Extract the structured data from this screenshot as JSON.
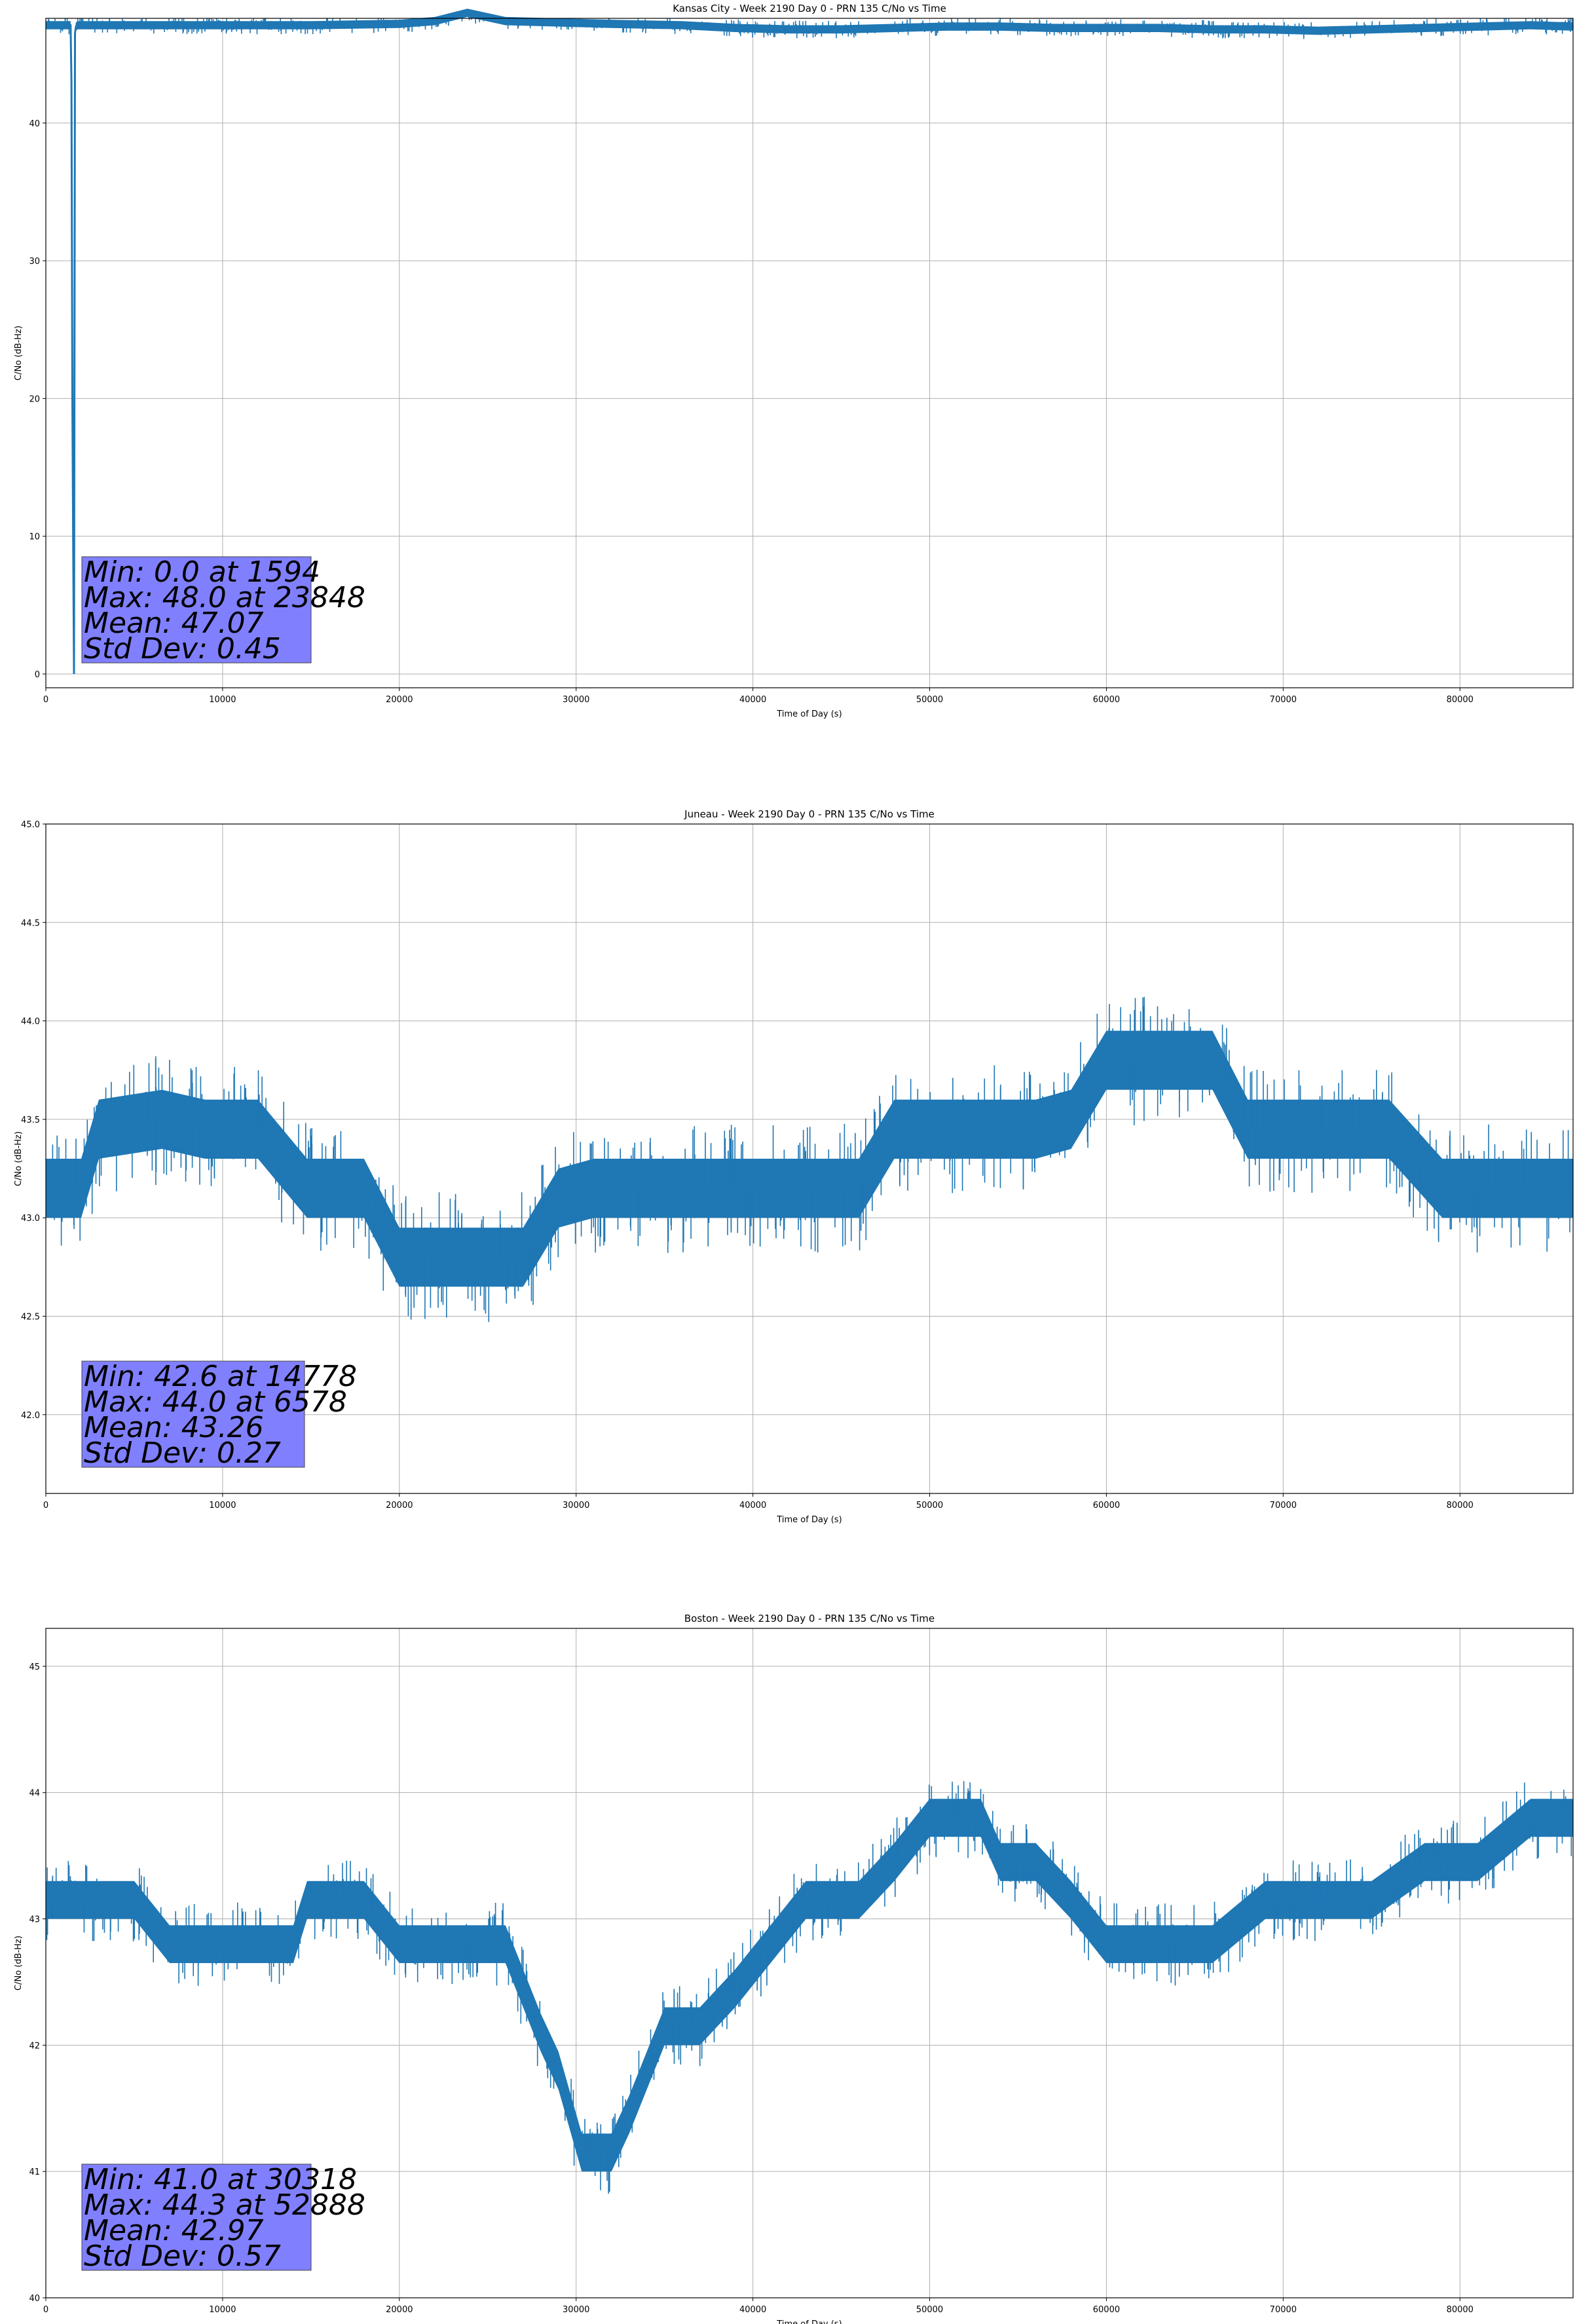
{
  "chart_data": [
    {
      "type": "line",
      "title": "Kansas City - Week 2190 Day 0 - PRN 135 C/No vs Time",
      "xlabel": "Time of Day (s)",
      "ylabel": "C/No (dB-Hz)",
      "xlim": [
        0,
        86400
      ],
      "ylim": [
        -1,
        47.6
      ],
      "xticks": [
        0,
        10000,
        20000,
        30000,
        40000,
        50000,
        60000,
        70000,
        80000
      ],
      "yticks": [
        0,
        10,
        20,
        30,
        40
      ],
      "grid": true,
      "line_color": "#1f77b4",
      "stats_box_color": "#8080ff",
      "stats": [
        "Min: 0.0 at 1594",
        "Max: 48.0 at 23848",
        "Mean: 47.07",
        "Std Dev: 0.45"
      ],
      "series": [
        {
          "x": [
            0,
            1400,
            1450,
            1500,
            1550,
            1594,
            1650,
            1700,
            1800,
            3000,
            6000,
            10000,
            15000,
            20000,
            22000,
            23848,
            26000,
            29000,
            32000,
            36000,
            39000,
            42000,
            45000,
            48000,
            51000,
            54000,
            57000,
            60000,
            63000,
            66000,
            69000,
            72000,
            75000,
            78000,
            81000,
            84000,
            86400
          ],
          "y": [
            47.1,
            47.1,
            43.0,
            20.0,
            9.0,
            0.0,
            46.5,
            47.0,
            47.1,
            47.1,
            47.1,
            47.1,
            47.1,
            47.2,
            47.4,
            48.0,
            47.4,
            47.3,
            47.2,
            47.1,
            46.9,
            46.8,
            46.8,
            46.9,
            47.0,
            47.0,
            46.9,
            46.9,
            46.9,
            46.8,
            46.8,
            46.7,
            46.8,
            46.9,
            47.0,
            47.1,
            47.0
          ],
          "band": 0.6
        }
      ]
    },
    {
      "type": "line",
      "title": "Juneau - Week 2190 Day 0 - PRN 135 C/No vs Time",
      "xlabel": "Time of Day (s)",
      "ylabel": "C/No (dB-Hz)",
      "xlim": [
        0,
        86400
      ],
      "ylim": [
        41.6,
        45.0
      ],
      "xticks": [
        0,
        10000,
        20000,
        30000,
        40000,
        50000,
        60000,
        70000,
        80000
      ],
      "yticks": [
        42.0,
        42.5,
        43.0,
        43.5,
        44.0,
        44.5,
        45.0
      ],
      "grid": true,
      "line_color": "#1f77b4",
      "stats_box_color": "#8080ff",
      "stats": [
        "Min: 42.6 at 14778",
        "Max: 44.0 at 6578",
        "Mean: 43.26",
        "Std Dev: 0.27"
      ],
      "series": [
        {
          "x": [
            0,
            2000,
            3000,
            6578,
            9000,
            12000,
            14778,
            18000,
            20000,
            24000,
            27000,
            29000,
            31000,
            34000,
            37000,
            40000,
            43000,
            46000,
            48000,
            50000,
            53000,
            56000,
            58000,
            60000,
            63000,
            66000,
            68000,
            70000,
            73000,
            76000,
            79000,
            81000,
            83000,
            86400
          ],
          "y": [
            43.15,
            43.15,
            43.45,
            43.5,
            43.45,
            43.45,
            43.15,
            43.15,
            42.8,
            42.8,
            42.8,
            43.1,
            43.15,
            43.15,
            43.15,
            43.15,
            43.15,
            43.15,
            43.45,
            43.45,
            43.45,
            43.45,
            43.5,
            43.8,
            43.8,
            43.8,
            43.45,
            43.45,
            43.45,
            43.45,
            43.15,
            43.15,
            43.15,
            43.15
          ],
          "band": 0.3
        }
      ]
    },
    {
      "type": "line",
      "title": "Boston - Week 2190 Day 0 - PRN 135 C/No vs Time",
      "xlabel": "Time of Day (s)",
      "ylabel": "C/No (dB-Hz)",
      "xlim": [
        0,
        86400
      ],
      "ylim": [
        40.0,
        45.3
      ],
      "xticks": [
        0,
        10000,
        20000,
        30000,
        40000,
        50000,
        60000,
        70000,
        80000
      ],
      "yticks": [
        40,
        41,
        42,
        43,
        44,
        45
      ],
      "grid": true,
      "line_color": "#1f77b4",
      "stats_box_color": "#8080ff",
      "stats": [
        "Min: 41.0 at 30318",
        "Max: 44.3 at 52888",
        "Mean: 42.97",
        "Std Dev: 0.57"
      ],
      "series": [
        {
          "x": [
            0,
            1000,
            5000,
            7000,
            10000,
            14000,
            14778,
            18000,
            20000,
            24000,
            26000,
            27000,
            28000,
            29000,
            30318,
            32000,
            33000,
            34000,
            35000,
            37000,
            39000,
            41000,
            43000,
            46000,
            48000,
            50000,
            52888,
            54000,
            56000,
            58000,
            60000,
            63000,
            66000,
            69000,
            72000,
            75000,
            78000,
            81000,
            84000,
            86400
          ],
          "y": [
            43.15,
            43.15,
            43.15,
            42.8,
            42.8,
            42.8,
            43.15,
            43.15,
            42.8,
            42.8,
            42.8,
            42.45,
            42.1,
            41.8,
            41.15,
            41.15,
            41.45,
            41.8,
            42.15,
            42.15,
            42.45,
            42.8,
            43.15,
            43.15,
            43.45,
            43.8,
            43.8,
            43.45,
            43.45,
            43.15,
            42.8,
            42.8,
            42.8,
            43.15,
            43.15,
            43.15,
            43.45,
            43.45,
            43.8,
            43.8
          ],
          "band": 0.3
        }
      ]
    }
  ]
}
